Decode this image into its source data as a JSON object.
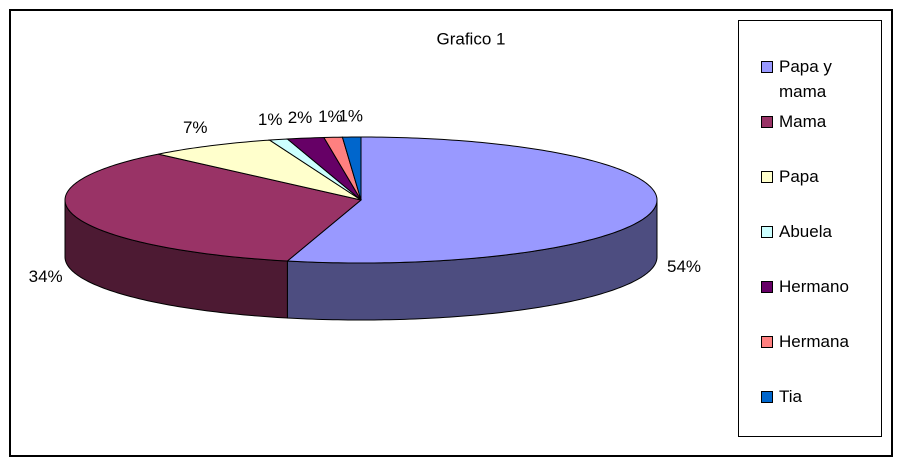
{
  "chart_data": {
    "type": "pie",
    "title": "Grafico 1",
    "categories": [
      "Papa y mama",
      "Mama",
      "Papa",
      "Abuela",
      "Hermano",
      "Hermana",
      "Tia"
    ],
    "values": [
      54,
      34,
      7,
      1,
      2,
      1,
      1
    ],
    "value_labels": [
      "54%",
      "34%",
      "7%",
      "1%",
      "2%",
      "1%",
      "1%"
    ],
    "colors": [
      "#9999ff",
      "#993366",
      "#ffffcc",
      "#ccffff",
      "#660066",
      "#ff8080",
      "#0066cc"
    ],
    "legend": "right"
  }
}
